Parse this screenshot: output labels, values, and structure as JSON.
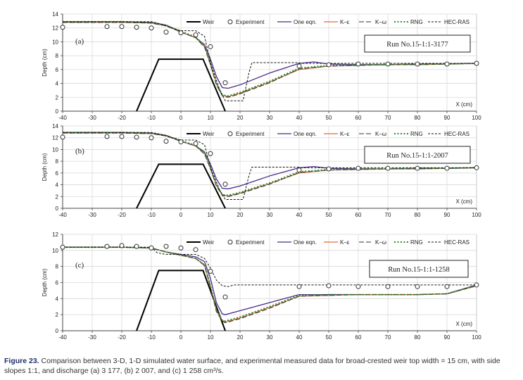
{
  "caption": {
    "label": "Figure 23.",
    "text": " Comparison between 3-D, 1-D simulated water surface, and experimental measured data for broad-crested weir top width = 15 cm, with side slopes 1:1, and discharge (a) 3 177, (b) 2 007, and (c) 1 258 cm³/s."
  },
  "colors": {
    "weir": "#000000",
    "one_eqn": "#4b2a8a",
    "k_eps": "#e06d3a",
    "k_omega": "#333333",
    "rng": "#2e8b2e",
    "hec_ras": "#111111"
  },
  "chart_data": [
    {
      "type": "line",
      "panel_label": "(a)",
      "run_label": "Run No.15-1:1-3177",
      "xlabel": "X (cm)",
      "ylabel": "Depth (cm)",
      "xlim": [
        -40,
        100
      ],
      "ylim": [
        0,
        14
      ],
      "xticks": [
        -40,
        -30,
        -20,
        -10,
        0,
        10,
        20,
        30,
        40,
        50,
        60,
        70,
        80,
        90,
        100
      ],
      "yticks": [
        0,
        2,
        4,
        6,
        8,
        10,
        12,
        14
      ],
      "legend": [
        "Weir",
        "Experiment",
        "One eqn.",
        "K–ε",
        "K–ω",
        "RNG",
        "HEC-RAS"
      ],
      "weir": {
        "x": [
          -15,
          -7.5,
          7.5,
          15
        ],
        "y": [
          0,
          7.5,
          7.5,
          0
        ]
      },
      "experiment": {
        "x": [
          -40,
          -25,
          -20,
          -15,
          -10,
          -5,
          0,
          5,
          10,
          15,
          40,
          50,
          60,
          70,
          80,
          90,
          100
        ],
        "y": [
          12.1,
          12.2,
          12.2,
          12.1,
          12.0,
          11.4,
          11.3,
          11.0,
          9.3,
          4.1,
          6.5,
          6.7,
          6.8,
          6.8,
          6.8,
          6.8,
          6.9
        ]
      },
      "series": [
        {
          "name": "One eqn.",
          "x": [
            -40,
            -20,
            -10,
            -5,
            0,
            5,
            8,
            10,
            12,
            14,
            16,
            20,
            30,
            40,
            45,
            50,
            60,
            70,
            80,
            90,
            100
          ],
          "y": [
            12.9,
            12.9,
            12.8,
            12.4,
            11.4,
            10.6,
            9.6,
            7.5,
            5.0,
            3.4,
            3.3,
            3.8,
            5.5,
            6.9,
            7.1,
            6.8,
            6.7,
            6.7,
            6.8,
            6.8,
            6.9
          ]
        },
        {
          "name": "K–ε",
          "x": [
            -40,
            -20,
            -10,
            -5,
            0,
            5,
            8,
            10,
            12,
            14,
            16,
            20,
            30,
            40,
            50,
            60,
            70,
            80,
            90,
            100
          ],
          "y": [
            12.8,
            12.8,
            12.7,
            12.3,
            11.4,
            10.6,
            9.3,
            6.8,
            3.9,
            2.3,
            2.1,
            2.6,
            4.2,
            6.0,
            6.5,
            6.6,
            6.7,
            6.7,
            6.8,
            6.9
          ]
        },
        {
          "name": "K–ω",
          "x": [
            -40,
            -20,
            -10,
            -5,
            0,
            5,
            8,
            10,
            12,
            14,
            16,
            20,
            30,
            40,
            50,
            60,
            70,
            80,
            90,
            100
          ],
          "y": [
            12.8,
            12.8,
            12.7,
            12.3,
            11.4,
            10.6,
            9.2,
            6.7,
            3.8,
            2.2,
            2.0,
            2.5,
            4.1,
            6.1,
            6.5,
            6.6,
            6.7,
            6.7,
            6.8,
            6.9
          ]
        },
        {
          "name": "RNG",
          "x": [
            -40,
            -20,
            -10,
            -5,
            0,
            5,
            8,
            10,
            12,
            14,
            16,
            20,
            30,
            40,
            50,
            60,
            70,
            80,
            90,
            100
          ],
          "y": [
            12.9,
            12.9,
            12.8,
            12.4,
            11.5,
            10.7,
            9.4,
            6.9,
            4.0,
            2.3,
            2.2,
            2.7,
            4.3,
            6.2,
            6.6,
            6.7,
            6.7,
            6.8,
            6.8,
            6.9
          ]
        },
        {
          "name": "HEC-RAS",
          "x": [
            -40,
            -10,
            -8,
            -5,
            0,
            5,
            8,
            10,
            13,
            15,
            17,
            21,
            22,
            23,
            24,
            40,
            40.5,
            100
          ],
          "y": [
            12.9,
            12.9,
            12.7,
            12.3,
            11.6,
            11.6,
            10.8,
            7.0,
            3.2,
            1.5,
            1.5,
            1.5,
            3.5,
            5.5,
            7.0,
            7.0,
            6.9,
            6.9
          ]
        }
      ]
    },
    {
      "type": "line",
      "panel_label": "(b)",
      "run_label": "Run No.15-1:1-2007",
      "xlabel": "X (cm)",
      "ylabel": "Depth (cm)",
      "xlim": [
        -40,
        100
      ],
      "ylim": [
        0,
        14
      ],
      "xticks": [
        -40,
        -30,
        -20,
        -10,
        0,
        10,
        20,
        30,
        40,
        50,
        60,
        70,
        80,
        90,
        100
      ],
      "yticks": [
        0,
        2,
        4,
        6,
        8,
        10,
        12,
        14
      ],
      "legend": [
        "Weir",
        "Experiment",
        "One eqn.",
        "K–ε",
        "K–ω",
        "RNG",
        "HEC-RAS"
      ],
      "weir": {
        "x": [
          -15,
          -7.5,
          7.5,
          15
        ],
        "y": [
          0,
          7.5,
          7.5,
          0
        ]
      },
      "experiment": {
        "x": [
          -40,
          -25,
          -20,
          -15,
          -10,
          -5,
          0,
          5,
          10,
          15,
          40,
          50,
          60,
          70,
          80,
          90,
          100
        ],
        "y": [
          12.1,
          12.2,
          12.2,
          12.1,
          12.0,
          11.4,
          11.3,
          11.0,
          9.3,
          4.1,
          6.5,
          6.7,
          6.8,
          6.8,
          6.8,
          6.8,
          6.9
        ]
      },
      "series": [
        {
          "name": "One eqn.",
          "x": [
            -40,
            -20,
            -10,
            -5,
            0,
            5,
            8,
            10,
            12,
            14,
            16,
            20,
            30,
            40,
            45,
            50,
            60,
            70,
            80,
            90,
            100
          ],
          "y": [
            12.9,
            12.9,
            12.8,
            12.4,
            11.4,
            10.6,
            9.6,
            7.5,
            5.0,
            3.4,
            3.3,
            3.8,
            5.5,
            6.9,
            7.1,
            6.8,
            6.7,
            6.7,
            6.8,
            6.8,
            6.9
          ]
        },
        {
          "name": "K–ε",
          "x": [
            -40,
            -20,
            -10,
            -5,
            0,
            5,
            8,
            10,
            12,
            14,
            16,
            20,
            30,
            40,
            50,
            60,
            70,
            80,
            90,
            100
          ],
          "y": [
            12.8,
            12.8,
            12.7,
            12.3,
            11.4,
            10.6,
            9.3,
            6.8,
            3.9,
            2.3,
            2.1,
            2.6,
            4.2,
            6.0,
            6.5,
            6.6,
            6.7,
            6.7,
            6.8,
            6.9
          ]
        },
        {
          "name": "K–ω",
          "x": [
            -40,
            -20,
            -10,
            -5,
            0,
            5,
            8,
            10,
            12,
            14,
            16,
            20,
            30,
            40,
            50,
            60,
            70,
            80,
            90,
            100
          ],
          "y": [
            12.8,
            12.8,
            12.7,
            12.3,
            11.4,
            10.6,
            9.2,
            6.7,
            3.8,
            2.2,
            2.0,
            2.5,
            4.1,
            6.1,
            6.5,
            6.6,
            6.7,
            6.7,
            6.8,
            6.9
          ]
        },
        {
          "name": "RNG",
          "x": [
            -40,
            -20,
            -10,
            -5,
            0,
            5,
            8,
            10,
            12,
            14,
            16,
            20,
            30,
            40,
            50,
            60,
            70,
            80,
            90,
            100
          ],
          "y": [
            12.9,
            12.9,
            12.8,
            12.4,
            11.5,
            10.7,
            9.4,
            6.9,
            4.0,
            2.3,
            2.2,
            2.7,
            4.3,
            6.2,
            6.6,
            6.7,
            6.7,
            6.8,
            6.8,
            6.9
          ]
        },
        {
          "name": "HEC-RAS",
          "x": [
            -40,
            -10,
            -8,
            -5,
            0,
            5,
            8,
            10,
            13,
            15,
            17,
            21,
            22,
            23,
            24,
            40,
            40.5,
            100
          ],
          "y": [
            12.9,
            12.9,
            12.7,
            12.3,
            11.6,
            11.6,
            10.8,
            7.0,
            3.2,
            1.5,
            1.5,
            1.5,
            3.5,
            5.5,
            7.0,
            7.0,
            6.9,
            6.9
          ]
        }
      ]
    },
    {
      "type": "line",
      "panel_label": "(c)",
      "run_label": "Run No.15-1:1-1258",
      "xlabel": "X (cm)",
      "ylabel": "Depth (cm)",
      "xlim": [
        -40,
        100
      ],
      "ylim": [
        0,
        12
      ],
      "xticks": [
        -40,
        -30,
        -20,
        -10,
        0,
        10,
        20,
        30,
        40,
        50,
        60,
        70,
        80,
        90,
        100
      ],
      "yticks": [
        0,
        2,
        4,
        6,
        8,
        10,
        12
      ],
      "legend": [
        "Weir",
        "Experiment",
        "One eqn.",
        "K–ε",
        "K–ω",
        "RNG",
        "HEC-RAS"
      ],
      "weir": {
        "x": [
          -15,
          -7.5,
          7.5,
          15
        ],
        "y": [
          0,
          7.5,
          7.5,
          0
        ]
      },
      "experiment": {
        "x": [
          -40,
          -25,
          -20,
          -15,
          -10,
          -5,
          0,
          5,
          10,
          15,
          40,
          50,
          60,
          70,
          80,
          90,
          100
        ],
        "y": [
          10.4,
          10.5,
          10.6,
          10.5,
          10.3,
          10.5,
          10.3,
          10.1,
          7.4,
          4.2,
          5.5,
          5.6,
          5.5,
          5.5,
          5.5,
          5.5,
          5.7
        ]
      },
      "series": [
        {
          "name": "One eqn.",
          "x": [
            -40,
            -20,
            -10,
            -7,
            -5,
            0,
            5,
            8,
            10,
            12,
            14,
            15,
            20,
            30,
            40,
            50,
            60,
            70,
            80,
            90,
            100
          ],
          "y": [
            10.4,
            10.4,
            10.3,
            10.0,
            9.8,
            9.5,
            9.2,
            8.6,
            6.5,
            3.5,
            2.1,
            2.0,
            2.5,
            3.5,
            4.5,
            4.5,
            4.5,
            4.5,
            4.5,
            4.6,
            5.7
          ]
        },
        {
          "name": "K–ε",
          "x": [
            -40,
            -20,
            -10,
            -7,
            -5,
            0,
            5,
            8,
            10,
            12,
            14,
            15,
            20,
            30,
            40,
            50,
            60,
            70,
            80,
            90,
            100
          ],
          "y": [
            10.4,
            10.4,
            10.3,
            10.0,
            9.8,
            9.4,
            9.0,
            8.2,
            5.5,
            2.5,
            1.3,
            1.1,
            1.6,
            2.9,
            4.3,
            4.4,
            4.5,
            4.5,
            4.5,
            4.6,
            5.6
          ]
        },
        {
          "name": "K–ω",
          "x": [
            -40,
            -20,
            -10,
            -7,
            -5,
            0,
            5,
            8,
            10,
            12,
            14,
            15,
            20,
            30,
            40,
            50,
            60,
            70,
            80,
            90,
            100
          ],
          "y": [
            10.4,
            10.4,
            10.3,
            10.0,
            9.8,
            9.4,
            9.0,
            8.1,
            5.4,
            2.4,
            1.2,
            1.0,
            1.5,
            2.8,
            4.3,
            4.4,
            4.5,
            4.5,
            4.5,
            4.6,
            5.6
          ]
        },
        {
          "name": "RNG",
          "x": [
            -40,
            -20,
            -10,
            -7,
            -5,
            0,
            5,
            8,
            10,
            12,
            14,
            15,
            20,
            30,
            40,
            50,
            60,
            70,
            80,
            90,
            100
          ],
          "y": [
            10.4,
            10.4,
            10.3,
            10.0,
            9.8,
            9.4,
            9.0,
            8.2,
            5.6,
            2.6,
            1.3,
            1.2,
            1.7,
            3.0,
            4.4,
            4.5,
            4.5,
            4.5,
            4.5,
            4.6,
            5.6
          ]
        },
        {
          "name": "HEC-RAS",
          "x": [
            -40,
            -10,
            -8,
            -5,
            0,
            5,
            8,
            10,
            12,
            14,
            16,
            18,
            20,
            40,
            60,
            80,
            100
          ],
          "y": [
            10.4,
            10.4,
            9.7,
            9.5,
            9.5,
            9.5,
            9.0,
            7.8,
            6.3,
            5.6,
            5.5,
            5.7,
            5.7,
            5.7,
            5.7,
            5.7,
            5.7
          ]
        }
      ]
    }
  ]
}
